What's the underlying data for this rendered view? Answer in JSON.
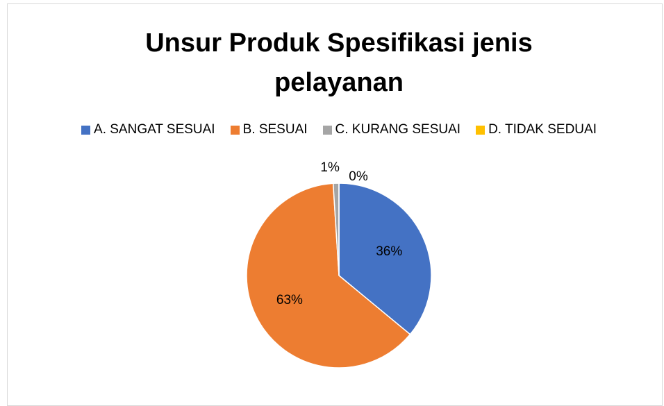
{
  "chart_data": {
    "type": "pie",
    "title": "Unsur Produk Spesifikasi jenis pelayanan",
    "categories": [
      "A. SANGAT SESUAI",
      "B. SESUAI",
      "C. KURANG SESUAI",
      "D. TIDAK SEDUAI"
    ],
    "values": [
      36,
      63,
      1,
      0
    ],
    "value_labels": [
      "36%",
      "63%",
      "1%",
      "0%"
    ],
    "colors": [
      "#4472c4",
      "#ed7d31",
      "#a5a5a5",
      "#ffc000"
    ],
    "legend": "top"
  }
}
